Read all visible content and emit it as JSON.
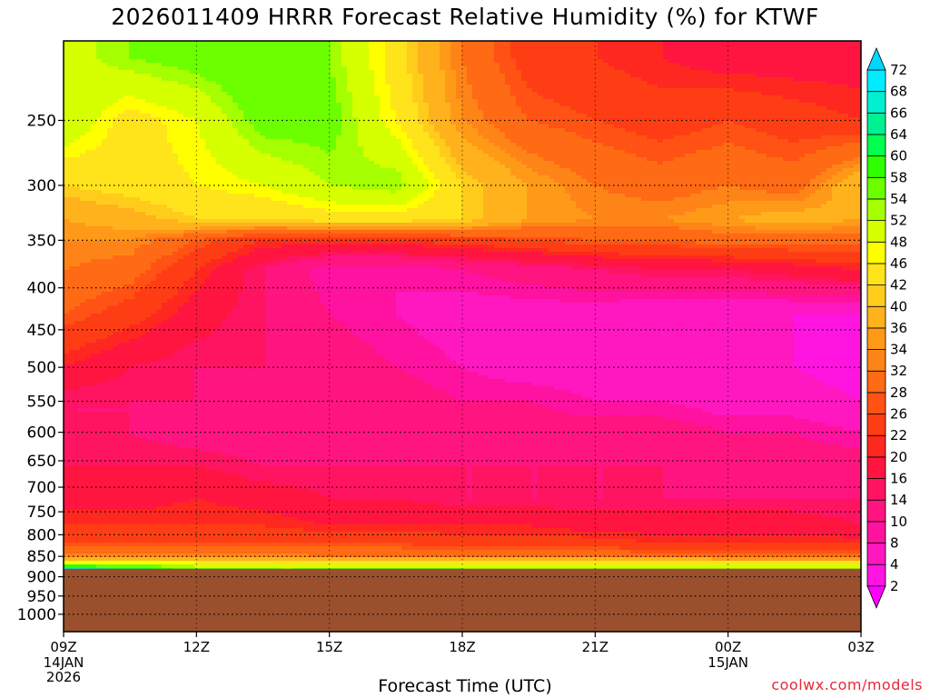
{
  "title": "2026011409 HRRR Forecast Relative Humidity (%) for KTWF",
  "credit": "coolwx.com/models",
  "chart_data": {
    "type": "heatmap",
    "title": "2026011409 HRRR Forecast Relative Humidity (%) for KTWF",
    "xlabel": "Forecast Time (UTC)",
    "ylabel": "",
    "x_ticks": [
      "09Z",
      "12Z",
      "15Z",
      "18Z",
      "21Z",
      "00Z",
      "03Z"
    ],
    "x_hours": [
      9,
      12,
      15,
      18,
      21,
      24,
      27
    ],
    "x_sublabels": [
      {
        "tick": "09Z",
        "lines": [
          "14JAN",
          "2026"
        ]
      },
      {
        "tick": "00Z",
        "lines": [
          "15JAN"
        ]
      }
    ],
    "y_scale": "log-pressure",
    "y_range": [
      1050,
      200
    ],
    "y_ticks": [
      250,
      300,
      350,
      400,
      450,
      500,
      550,
      600,
      650,
      700,
      750,
      800,
      850,
      900,
      950,
      1000
    ],
    "grid": true,
    "ground_level_hpa": 880,
    "ground_color": "#9a4f2d",
    "colorbar": {
      "placement": "right",
      "levels": [
        2,
        4,
        8,
        10,
        14,
        16,
        20,
        22,
        26,
        28,
        32,
        34,
        36,
        40,
        42,
        46,
        48,
        52,
        54,
        58,
        60,
        64,
        66,
        68,
        72
      ],
      "colors": [
        "#ff00ff",
        "#ff14e0",
        "#ff17c0",
        "#ff12a0",
        "#ff1480",
        "#ff1462",
        "#ff1540",
        "#ff2820",
        "#ff3d14",
        "#ff5214",
        "#ff6a14",
        "#ff8418",
        "#ff9a18",
        "#ffb21c",
        "#ffcc1c",
        "#ffe41c",
        "#ffff00",
        "#d6ff00",
        "#a6ff00",
        "#6cff00",
        "#30ff00",
        "#00ff50",
        "#00f094",
        "#00f0d0",
        "#00ecff",
        "#00d6ff"
      ]
    },
    "x_hours_grid": [
      9,
      10.5,
      12,
      13.5,
      15,
      16.5,
      18,
      19.5,
      21,
      22.5,
      24,
      25.5,
      27
    ],
    "rh_grid": [
      {
        "p": 210,
        "rh": [
          50,
          54,
          56,
          58,
          54,
          44,
          32,
          24,
          22,
          20,
          18,
          18,
          18
        ]
      },
      {
        "p": 250,
        "rh": [
          52,
          44,
          48,
          56,
          56,
          46,
          34,
          28,
          26,
          24,
          26,
          24,
          22
        ]
      },
      {
        "p": 300,
        "rh": [
          42,
          44,
          46,
          48,
          52,
          54,
          42,
          36,
          32,
          30,
          32,
          30,
          40
        ]
      },
      {
        "p": 330,
        "rh": [
          36,
          38,
          42,
          42,
          44,
          44,
          42,
          36,
          34,
          34,
          36,
          38,
          36
        ]
      },
      {
        "p": 350,
        "rh": [
          34,
          34,
          28,
          22,
          22,
          22,
          24,
          26,
          28,
          28,
          30,
          30,
          30
        ]
      },
      {
        "p": 380,
        "rh": [
          32,
          30,
          22,
          14,
          8,
          8,
          10,
          12,
          14,
          16,
          16,
          18,
          20
        ]
      },
      {
        "p": 430,
        "rh": [
          28,
          24,
          18,
          14,
          10,
          8,
          6,
          6,
          6,
          4,
          4,
          4,
          4
        ]
      },
      {
        "p": 500,
        "rh": [
          20,
          16,
          14,
          14,
          12,
          10,
          8,
          6,
          6,
          4,
          4,
          4,
          2
        ]
      },
      {
        "p": 550,
        "rh": [
          14,
          14,
          14,
          12,
          12,
          12,
          10,
          10,
          8,
          8,
          6,
          6,
          4
        ]
      },
      {
        "p": 600,
        "rh": [
          14,
          14,
          12,
          12,
          12,
          12,
          12,
          12,
          12,
          12,
          10,
          10,
          8
        ]
      },
      {
        "p": 660,
        "rh": [
          16,
          16,
          16,
          14,
          14,
          14,
          14,
          14,
          14,
          14,
          12,
          12,
          12
        ]
      },
      {
        "p": 720,
        "rh": [
          18,
          18,
          20,
          18,
          16,
          16,
          14,
          14,
          14,
          14,
          14,
          14,
          14
        ]
      },
      {
        "p": 780,
        "rh": [
          22,
          22,
          22,
          22,
          20,
          20,
          20,
          20,
          18,
          18,
          18,
          18,
          16
        ]
      },
      {
        "p": 820,
        "rh": [
          26,
          26,
          26,
          26,
          26,
          26,
          24,
          24,
          24,
          22,
          22,
          22,
          22
        ]
      },
      {
        "p": 850,
        "rh": [
          34,
          34,
          34,
          34,
          32,
          32,
          32,
          32,
          32,
          30,
          30,
          30,
          30
        ]
      },
      {
        "p": 865,
        "rh": [
          48,
          48,
          46,
          46,
          46,
          46,
          46,
          46,
          46,
          46,
          44,
          44,
          44
        ]
      },
      {
        "p": 880,
        "rh": [
          68,
          62,
          56,
          54,
          54,
          54,
          54,
          52,
          52,
          52,
          52,
          52,
          52
        ]
      }
    ]
  }
}
